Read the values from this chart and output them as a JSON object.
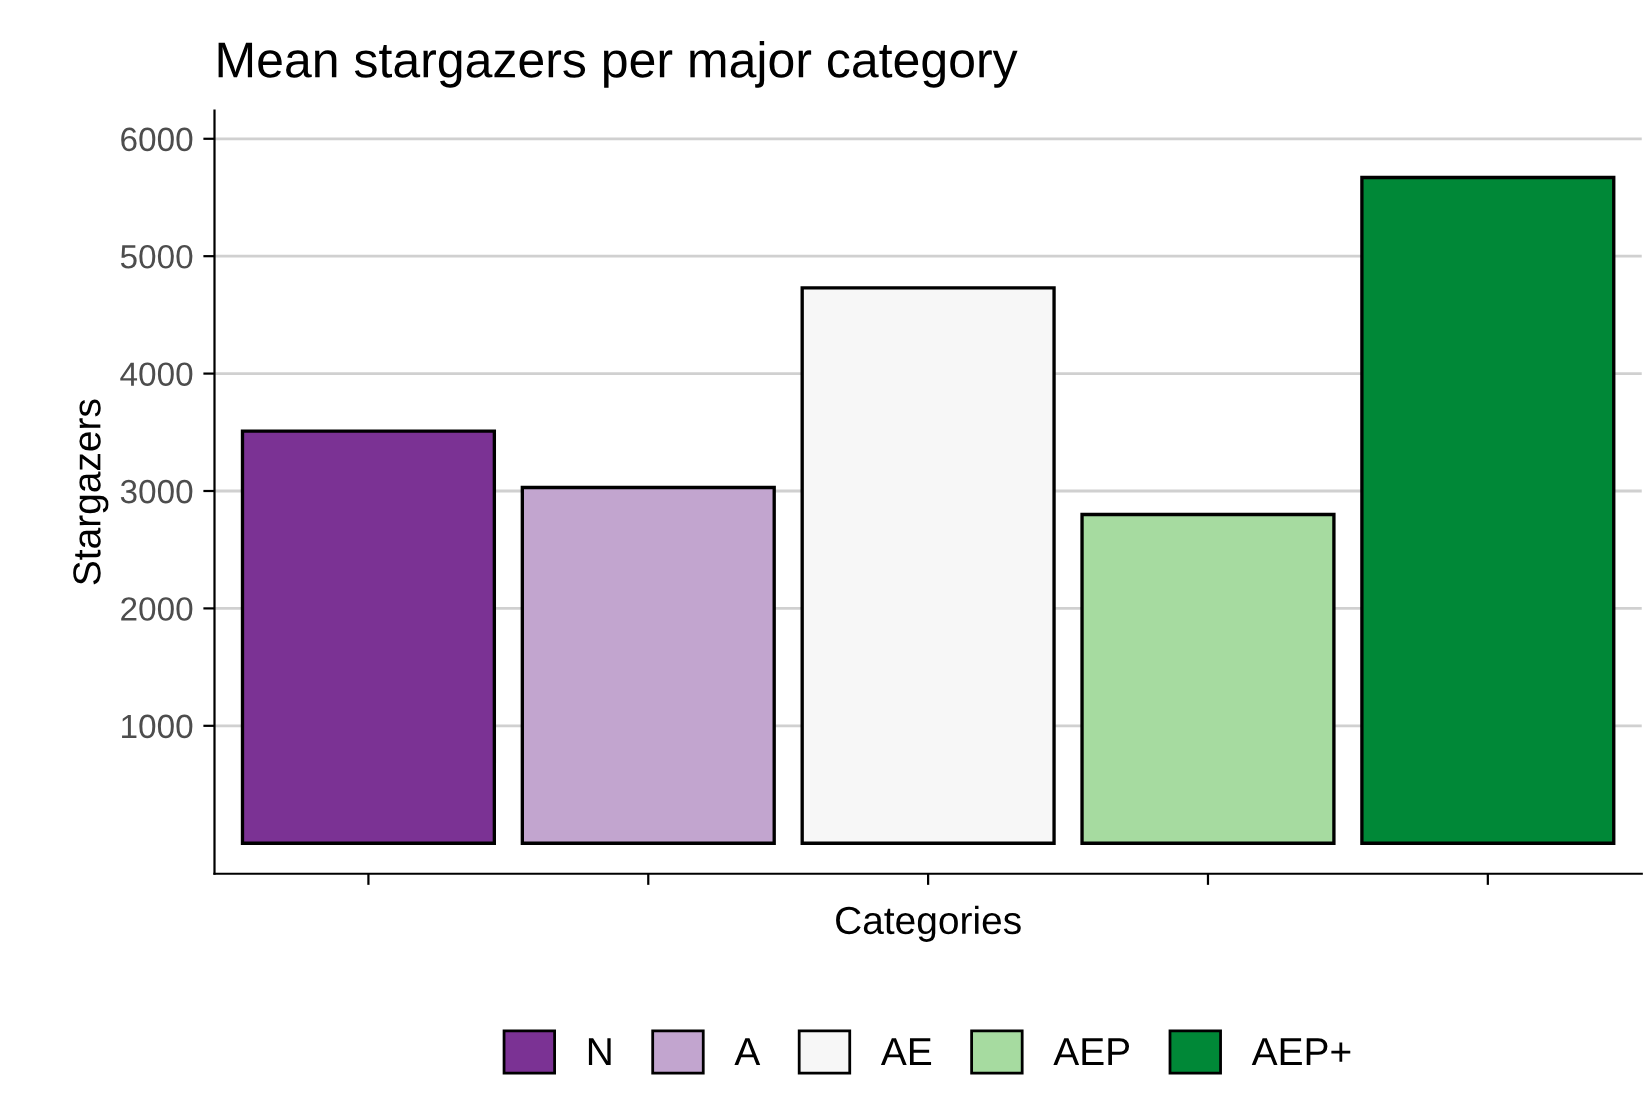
{
  "chart_data": {
    "type": "bar",
    "title": "Mean stargazers per major category",
    "xlabel": "Categories",
    "ylabel": "Stargazers",
    "categories": [
      null,
      null,
      null,
      null,
      null
    ],
    "series": [
      {
        "name": "N",
        "color": "#7b3294",
        "values": [
          3510,
          null,
          null,
          null,
          null
        ]
      },
      {
        "name": "A",
        "color": "#c2a5cf",
        "values": [
          null,
          3030,
          null,
          null,
          null
        ]
      },
      {
        "name": "AE",
        "color": "#f7f7f7",
        "values": [
          null,
          null,
          4730,
          null,
          null
        ]
      },
      {
        "name": "AEP",
        "color": "#a6dba0",
        "values": [
          null,
          null,
          null,
          2800,
          null
        ]
      },
      {
        "name": "AEP+",
        "color": "#008837",
        "values": [
          null,
          null,
          null,
          null,
          5670
        ]
      }
    ],
    "ylim": [
      -260,
      6240
    ],
    "yticks": [
      1000,
      2000,
      3000,
      4000,
      5000,
      6000
    ],
    "grid": "y",
    "legend": "bottom"
  }
}
